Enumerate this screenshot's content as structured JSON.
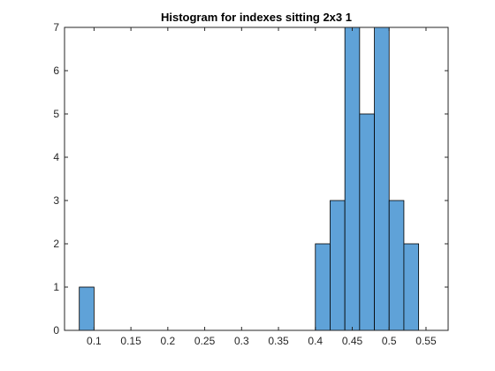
{
  "chart_data": {
    "type": "bar",
    "title": "Histogram for indexes sitting 2x3 1",
    "xlabel": "",
    "ylabel": "",
    "bins": [
      {
        "start": 0.08,
        "end": 0.1,
        "count": 1
      },
      {
        "start": 0.4,
        "end": 0.42,
        "count": 2
      },
      {
        "start": 0.42,
        "end": 0.44,
        "count": 3
      },
      {
        "start": 0.44,
        "end": 0.46,
        "count": 7
      },
      {
        "start": 0.46,
        "end": 0.48,
        "count": 5
      },
      {
        "start": 0.48,
        "end": 0.5,
        "count": 7
      },
      {
        "start": 0.5,
        "end": 0.52,
        "count": 3
      },
      {
        "start": 0.52,
        "end": 0.54,
        "count": 2
      }
    ],
    "xlim": [
      0.06,
      0.58
    ],
    "ylim": [
      0,
      7
    ],
    "xticks": [
      0.1,
      0.15,
      0.2,
      0.25,
      0.3,
      0.35,
      0.4,
      0.45,
      0.5,
      0.55
    ],
    "xtick_labels": [
      "0.1",
      "0.15",
      "0.2",
      "0.25",
      "0.3",
      "0.35",
      "0.4",
      "0.45",
      "0.5",
      "0.55"
    ],
    "yticks": [
      0,
      1,
      2,
      3,
      4,
      5,
      6,
      7
    ],
    "ytick_labels": [
      "0",
      "1",
      "2",
      "3",
      "4",
      "5",
      "6",
      "7"
    ],
    "bar_color": "#5FA2D8",
    "edge_color": "#000000",
    "grid": false,
    "legend": false
  }
}
